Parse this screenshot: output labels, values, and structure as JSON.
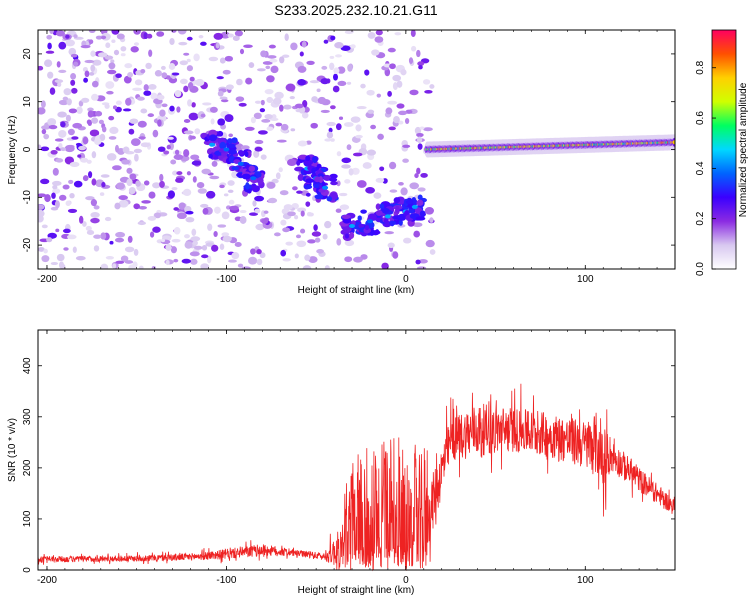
{
  "title": "S233.2025.232.10.21.G11",
  "chart_data": [
    {
      "type": "heatmap",
      "xlabel": "Height of straight line (km)",
      "ylabel": "Frequency (Hz)",
      "xlim": [
        -205,
        150
      ],
      "ylim": [
        -25,
        25
      ],
      "xticks": [
        -200,
        -100,
        0,
        100
      ],
      "yticks": [
        -20,
        -10,
        0,
        10,
        20
      ],
      "colorbar": {
        "label": "Normalized spectral amplitude",
        "range": [
          0.0,
          0.95
        ],
        "ticks": [
          0.0,
          0.2,
          0.4,
          0.6,
          0.8
        ],
        "tick_labels": [
          "0.0",
          "0.2",
          "0.4",
          "0.6",
          "0.8"
        ],
        "colormap": [
          "#ffffff",
          "#d8c8f0",
          "#8b2be2",
          "#3a00ff",
          "#0064ff",
          "#00d8ff",
          "#00ff60",
          "#d0ff00",
          "#ffd000",
          "#ff5000",
          "#ff0060"
        ]
      },
      "features": [
        {
          "name": "noise",
          "x_range": [
            -205,
            15
          ],
          "freq_range": [
            -25,
            25
          ]
        },
        {
          "name": "cluster",
          "x": [
            -108,
            -100,
            -92,
            -85
          ],
          "freq": [
            1,
            0,
            -3,
            -6
          ]
        },
        {
          "name": "cluster",
          "x": [
            -55,
            -50,
            -45
          ],
          "freq": [
            -4,
            -6,
            -8
          ]
        },
        {
          "name": "cluster",
          "x": [
            -30,
            -20,
            -10,
            0,
            5
          ],
          "freq": [
            -16,
            -15,
            -14,
            -13,
            -12
          ]
        },
        {
          "name": "carrier",
          "x_range": [
            12,
            150
          ],
          "freq": [
            0,
            1.5
          ]
        }
      ]
    },
    {
      "type": "line",
      "xlabel": "Height of straight line (km)",
      "ylabel": "SNR (10 * v/v)",
      "xlim": [
        -205,
        150
      ],
      "ylim": [
        0,
        470
      ],
      "xticks": [
        -200,
        -100,
        0,
        100
      ],
      "yticks": [
        0,
        100,
        200,
        300,
        400
      ],
      "color": "#ee2222",
      "envelope": {
        "x": [
          -205,
          -150,
          -120,
          -100,
          -80,
          -60,
          -45,
          -35,
          -25,
          -15,
          0,
          12,
          25,
          40,
          60,
          80,
          100,
          108,
          115,
          130,
          150
        ],
        "base": [
          20,
          22,
          25,
          30,
          38,
          32,
          25,
          40,
          60,
          60,
          60,
          90,
          250,
          270,
          270,
          260,
          240,
          240,
          220,
          175,
          120
        ],
        "amp": [
          15,
          15,
          18,
          25,
          30,
          15,
          20,
          120,
          200,
          200,
          200,
          150,
          110,
          130,
          110,
          110,
          120,
          170,
          80,
          60,
          40
        ]
      }
    }
  ]
}
